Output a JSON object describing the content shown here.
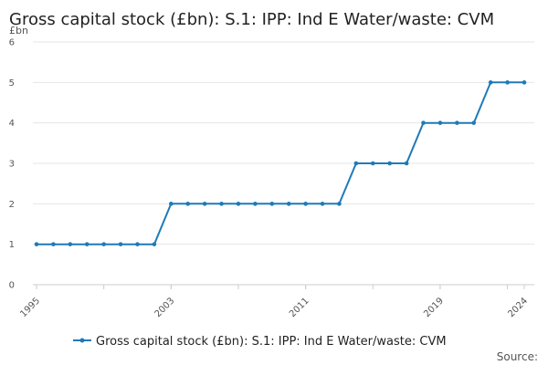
{
  "chart_data": {
    "type": "line",
    "title": "Gross capital stock (£bn): S.1: IPP: Ind E Water/waste: CVM",
    "ylabel": "£bn",
    "xlabel": "",
    "ylim": [
      0,
      6
    ],
    "yticks": [
      "0",
      "1",
      "2",
      "3",
      "4",
      "5",
      "6"
    ],
    "xticks": [
      "1995",
      "2003",
      "2011",
      "2019",
      "2024"
    ],
    "grid": true,
    "legend_position": "bottom",
    "series": [
      {
        "name": "Gross capital stock (£bn): S.1: IPP: Ind E Water/waste: CVM",
        "color": "#1f7ab8",
        "x": [
          1995,
          1996,
          1997,
          1998,
          1999,
          2000,
          2001,
          2002,
          2003,
          2004,
          2005,
          2006,
          2007,
          2008,
          2009,
          2010,
          2011,
          2012,
          2013,
          2014,
          2015,
          2016,
          2017,
          2018,
          2019,
          2020,
          2021,
          2022,
          2023,
          2024
        ],
        "values": [
          1,
          1,
          1,
          1,
          1,
          1,
          1,
          1,
          2,
          2,
          2,
          2,
          2,
          2,
          2,
          2,
          2,
          2,
          2,
          3,
          3,
          3,
          3,
          4,
          4,
          4,
          4,
          5,
          5,
          5
        ]
      }
    ]
  },
  "footer": {
    "source_label": "Source:"
  }
}
